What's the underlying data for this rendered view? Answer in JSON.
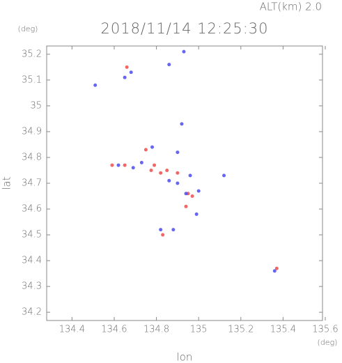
{
  "chart_data": {
    "type": "scatter",
    "title": "2018/11/14 12:25:30",
    "subtitle": "ALT(km) 2.0",
    "y_unit": "(deg)",
    "x_unit": "(deg)",
    "x_label": "lon",
    "y_label": "lat",
    "xlim": [
      134.28,
      135.6
    ],
    "ylim": [
      34.168,
      35.232
    ],
    "xticks": [
      134.4,
      134.6,
      134.8,
      135.0,
      135.2,
      135.4,
      135.6
    ],
    "yticks": [
      34.2,
      34.3,
      34.4,
      34.5,
      34.6,
      34.7,
      34.8,
      34.9,
      35.0,
      35.1,
      35.2
    ],
    "series": [
      {
        "color": "#f04040",
        "x": [
          134.66,
          134.75,
          134.79,
          134.82,
          134.775,
          134.85,
          134.9,
          134.95,
          134.97,
          134.94,
          134.83,
          134.59,
          135.37,
          134.65
        ],
        "values": [
          35.15,
          34.83,
          34.77,
          34.74,
          34.75,
          34.75,
          34.74,
          34.66,
          34.65,
          34.61,
          34.5,
          34.77,
          34.37,
          34.77
        ]
      },
      {
        "color": "#4040f0",
        "x": [
          134.51,
          134.68,
          134.65,
          134.86,
          134.93,
          134.92,
          134.9,
          134.78,
          134.73,
          134.62,
          134.69,
          134.86,
          134.9,
          134.96,
          135.0,
          134.99,
          135.12,
          134.88,
          134.82,
          134.94,
          135.36
        ],
        "values": [
          35.08,
          35.13,
          35.11,
          35.16,
          35.21,
          34.93,
          34.82,
          34.84,
          34.78,
          34.77,
          34.76,
          34.71,
          34.7,
          34.73,
          34.67,
          34.58,
          34.73,
          34.52,
          34.52,
          34.66,
          34.36
        ]
      }
    ]
  }
}
